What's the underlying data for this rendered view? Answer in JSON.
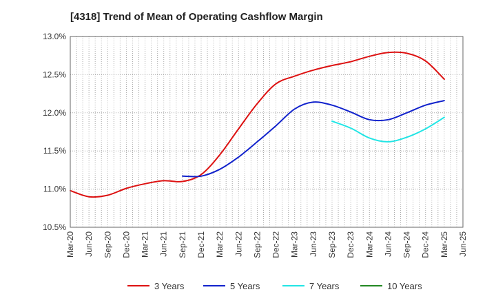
{
  "chart_data": {
    "type": "line",
    "title": "[4318]  Trend of Mean of Operating Cashflow Margin",
    "xlabel": "",
    "ylabel": "",
    "x": [
      "Mar-20",
      "Jun-20",
      "Sep-20",
      "Dec-20",
      "Mar-21",
      "Jun-21",
      "Sep-21",
      "Dec-21",
      "Mar-22",
      "Jun-22",
      "Sep-22",
      "Dec-22",
      "Mar-23",
      "Jun-23",
      "Sep-23",
      "Dec-23",
      "Mar-24",
      "Jun-24",
      "Sep-24",
      "Dec-24",
      "Mar-25",
      "Jun-25"
    ],
    "y_ticks": [
      "10.5%",
      "11.0%",
      "11.5%",
      "12.0%",
      "12.5%",
      "13.0%"
    ],
    "ylim": [
      10.5,
      13.0
    ],
    "y_unit": "%",
    "grid": true,
    "legend_position": "bottom",
    "series": [
      {
        "name": "3 Years",
        "color": "#dd1111",
        "values": [
          10.98,
          10.9,
          10.92,
          11.01,
          11.07,
          11.11,
          11.1,
          11.19,
          11.45,
          11.79,
          12.12,
          12.38,
          12.48,
          12.56,
          12.62,
          12.67,
          12.74,
          12.79,
          12.78,
          12.68,
          12.44,
          null
        ]
      },
      {
        "name": "5 Years",
        "color": "#1122cc",
        "values": [
          null,
          null,
          null,
          null,
          null,
          null,
          11.17,
          11.17,
          11.26,
          11.42,
          11.62,
          11.83,
          12.05,
          12.14,
          12.1,
          12.01,
          11.91,
          11.91,
          12.0,
          12.1,
          12.16,
          null
        ]
      },
      {
        "name": "7 Years",
        "color": "#22e5e5",
        "values": [
          null,
          null,
          null,
          null,
          null,
          null,
          null,
          null,
          null,
          null,
          null,
          null,
          null,
          null,
          11.89,
          11.8,
          11.67,
          11.62,
          11.68,
          11.79,
          11.94,
          null
        ]
      },
      {
        "name": "10 Years",
        "color": "#228822",
        "values": [
          null,
          null,
          null,
          null,
          null,
          null,
          null,
          null,
          null,
          null,
          null,
          null,
          null,
          null,
          null,
          null,
          null,
          null,
          null,
          null,
          null,
          null
        ]
      }
    ]
  }
}
